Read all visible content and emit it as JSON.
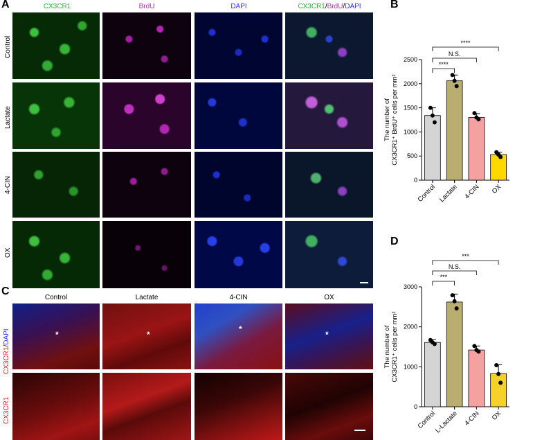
{
  "panelA": {
    "letter": "A",
    "columns": [
      {
        "label": "CX3CR1",
        "color": "#22c322"
      },
      {
        "label": "BrdU",
        "color": "#cc22cc"
      },
      {
        "label": "DAPI",
        "color": "#3333ff"
      },
      {
        "label_parts": [
          "CX3CR1",
          "/",
          "BrdU",
          "/",
          "DAPI"
        ],
        "part_colors": [
          "#22c322",
          "#000000",
          "#cc22cc",
          "#000000",
          "#3333ff"
        ]
      }
    ],
    "rows": [
      "Control",
      "Lactate",
      "4-CIN",
      "OX"
    ]
  },
  "panelC": {
    "letter": "C",
    "columns": [
      "Control",
      "Lactate",
      "4-CIN",
      "OX"
    ],
    "row_labels": [
      {
        "parts": [
          "CX3CR1",
          "/",
          "DAPI"
        ],
        "colors": [
          "#e02020",
          "#000000",
          "#2a2aff"
        ]
      },
      {
        "parts": [
          "CX3CR1"
        ],
        "colors": [
          "#e02020"
        ]
      }
    ],
    "star": "*"
  },
  "chart_data": [
    {
      "letter": "B",
      "type": "bar",
      "categories": [
        "Control",
        "Lactate",
        "4-CIN",
        "OX"
      ],
      "values": [
        1340,
        2060,
        1300,
        530
      ],
      "errors": [
        160,
        120,
        80,
        50
      ],
      "points": [
        [
          1500,
          1340,
          1200
        ],
        [
          2180,
          2060,
          1950
        ],
        [
          1390,
          1300,
          1260
        ],
        [
          580,
          530,
          480
        ]
      ],
      "colors": [
        "#d4d4d4",
        "#b9ad6f",
        "#f6a1a1",
        "#ffd800"
      ],
      "ylabel_lines": [
        "The number of",
        "CX3CR1⁺ BrdU⁺ cells per mm²"
      ],
      "ylim": [
        0,
        2500
      ],
      "yticks": [
        0,
        500,
        1000,
        1500,
        2000,
        2500
      ],
      "comparisons": [
        {
          "from": 0,
          "to": 1,
          "label": "****"
        },
        {
          "from": 0,
          "to": 2,
          "label": "N.S."
        },
        {
          "from": 0,
          "to": 3,
          "label": "****"
        }
      ]
    },
    {
      "letter": "D",
      "type": "bar",
      "categories": [
        "Control",
        "L-Lactate",
        "4-CIN",
        "OX"
      ],
      "values": [
        1610,
        2620,
        1420,
        830
      ],
      "errors": [
        70,
        200,
        100,
        220
      ],
      "points": [
        [
          1670,
          1610,
          1570
        ],
        [
          2790,
          2640,
          2460
        ],
        [
          1520,
          1420,
          1380
        ],
        [
          1040,
          820,
          600
        ]
      ],
      "colors": [
        "#d4d4d4",
        "#b9ad6f",
        "#f6a1a1",
        "#f5d12a"
      ],
      "ylabel_lines": [
        "The number of",
        "CX3CR1⁺ cells per mm²"
      ],
      "ylim": [
        0,
        3000
      ],
      "yticks": [
        0,
        1000,
        2000,
        3000
      ],
      "comparisons": [
        {
          "from": 0,
          "to": 1,
          "label": "***"
        },
        {
          "from": 0,
          "to": 2,
          "label": "N.S."
        },
        {
          "from": 0,
          "to": 3,
          "label": "***"
        }
      ]
    }
  ]
}
